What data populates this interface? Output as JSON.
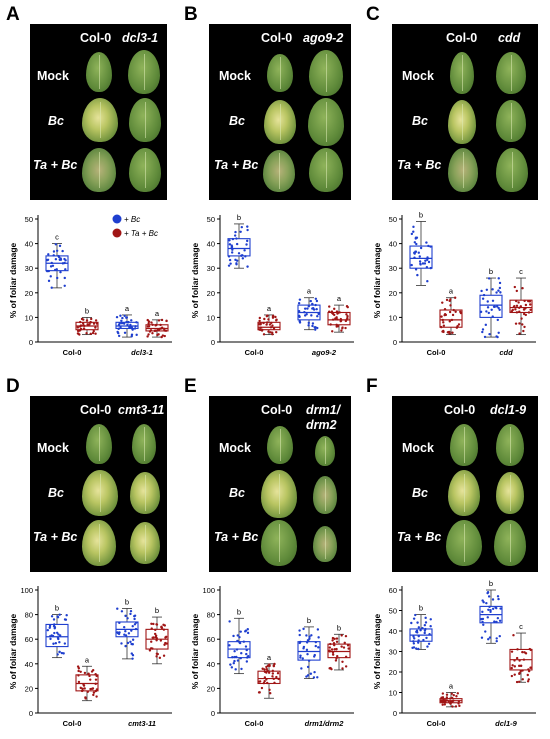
{
  "panels": [
    {
      "letter": "A",
      "col0": "Col-0",
      "mutant": "dcl3-1"
    },
    {
      "letter": "B",
      "col0": "Col-0",
      "mutant": "ago9-2"
    },
    {
      "letter": "C",
      "col0": "Col-0",
      "mutant": "cdd"
    },
    {
      "letter": "D",
      "col0": "Col-0",
      "mutant": "cmt3-11"
    },
    {
      "letter": "E",
      "col0": "Col-0",
      "mutant_line1": "drm1/",
      "mutant_line2": "drm2"
    },
    {
      "letter": "F",
      "col0": "Col-0",
      "mutant": "dcl1-9"
    }
  ],
  "row_labels": {
    "mock": "Mock",
    "bc": "Bc",
    "tabc": "Ta + Bc"
  },
  "legend": {
    "bc": "+ Bc",
    "tabc": "+ Ta + Bc"
  },
  "colors": {
    "bc": "#1f3fcf",
    "tabc": "#a01515",
    "photo_bg": "#000000",
    "leaf": "#5f8a3a"
  },
  "chart_data": [
    {
      "panel": "A",
      "type": "box",
      "ylabel": "% of foliar damage",
      "ylim": [
        0,
        50
      ],
      "yticks": [
        0,
        10,
        20,
        30,
        40,
        50
      ],
      "categories": [
        "Col-0",
        "dcl3-1"
      ],
      "boxes": [
        {
          "cat": 0,
          "group": "bc",
          "min": 22,
          "q1": 29,
          "median": 32,
          "q3": 35,
          "max": 40,
          "letter": "c"
        },
        {
          "cat": 0,
          "group": "tabc",
          "min": 3,
          "q1": 5,
          "median": 6.5,
          "q3": 8,
          "max": 10,
          "letter": "b"
        },
        {
          "cat": 1,
          "group": "bc",
          "min": 2,
          "q1": 5.5,
          "median": 6.5,
          "q3": 8,
          "max": 11,
          "letter": "a"
        },
        {
          "cat": 1,
          "group": "tabc",
          "min": 2,
          "q1": 4.5,
          "median": 5.5,
          "q3": 7,
          "max": 9,
          "letter": "a"
        }
      ]
    },
    {
      "panel": "B",
      "type": "box",
      "ylabel": "% of foliar damage",
      "ylim": [
        0,
        50
      ],
      "yticks": [
        0,
        10,
        20,
        30,
        40,
        50
      ],
      "categories": [
        "Col-0",
        "ago9-2"
      ],
      "boxes": [
        {
          "cat": 0,
          "group": "bc",
          "min": 30,
          "q1": 35,
          "median": 38,
          "q3": 42,
          "max": 48,
          "letter": "b"
        },
        {
          "cat": 0,
          "group": "tabc",
          "min": 3,
          "q1": 5,
          "median": 6,
          "q3": 8,
          "max": 11,
          "letter": "a"
        },
        {
          "cat": 1,
          "group": "bc",
          "min": 5,
          "q1": 9,
          "median": 12,
          "q3": 15,
          "max": 18,
          "letter": "a"
        },
        {
          "cat": 1,
          "group": "tabc",
          "min": 4,
          "q1": 7,
          "median": 9,
          "q3": 12,
          "max": 15,
          "letter": "a"
        }
      ]
    },
    {
      "panel": "C",
      "type": "box",
      "ylabel": "% of foliar damage",
      "ylim": [
        0,
        50
      ],
      "yticks": [
        0,
        10,
        20,
        30,
        40,
        50
      ],
      "categories": [
        "Col-0",
        "cdd"
      ],
      "boxes": [
        {
          "cat": 0,
          "group": "bc",
          "min": 23,
          "q1": 30,
          "median": 34,
          "q3": 39,
          "max": 49,
          "letter": "b"
        },
        {
          "cat": 0,
          "group": "tabc",
          "min": 3,
          "q1": 6,
          "median": 9,
          "q3": 13,
          "max": 18,
          "letter": "a"
        },
        {
          "cat": 1,
          "group": "bc",
          "min": 2,
          "q1": 10,
          "median": 15,
          "q3": 19,
          "max": 26,
          "letter": "b"
        },
        {
          "cat": 1,
          "group": "tabc",
          "min": 3,
          "q1": 12,
          "median": 14,
          "q3": 17,
          "max": 26,
          "letter": "c"
        }
      ]
    },
    {
      "panel": "D",
      "type": "box",
      "ylabel": "% of foliar damage",
      "ylim": [
        0,
        100
      ],
      "yticks": [
        0,
        20,
        40,
        60,
        80,
        100
      ],
      "categories": [
        "Col-0",
        "cmt3-11"
      ],
      "boxes": [
        {
          "cat": 0,
          "group": "bc",
          "min": 45,
          "q1": 54,
          "median": 62,
          "q3": 72,
          "max": 80,
          "letter": "b"
        },
        {
          "cat": 0,
          "group": "tabc",
          "min": 10,
          "q1": 18,
          "median": 24,
          "q3": 31,
          "max": 38,
          "letter": "a"
        },
        {
          "cat": 1,
          "group": "bc",
          "min": 44,
          "q1": 62,
          "median": 68,
          "q3": 74,
          "max": 85,
          "letter": "b"
        },
        {
          "cat": 1,
          "group": "tabc",
          "min": 40,
          "q1": 52,
          "median": 60,
          "q3": 68,
          "max": 78,
          "letter": "b"
        }
      ]
    },
    {
      "panel": "E",
      "type": "box",
      "ylabel": "% of foliar damage",
      "ylim": [
        0,
        100
      ],
      "yticks": [
        0,
        20,
        40,
        60,
        80,
        100
      ],
      "categories": [
        "Col-0",
        "drm1/drm2"
      ],
      "boxes": [
        {
          "cat": 0,
          "group": "bc",
          "min": 32,
          "q1": 45,
          "median": 52,
          "q3": 58,
          "max": 77,
          "letter": "b"
        },
        {
          "cat": 0,
          "group": "tabc",
          "min": 12,
          "q1": 24,
          "median": 28,
          "q3": 34,
          "max": 40,
          "letter": "a"
        },
        {
          "cat": 1,
          "group": "bc",
          "min": 28,
          "q1": 43,
          "median": 50,
          "q3": 58,
          "max": 70,
          "letter": "b"
        },
        {
          "cat": 1,
          "group": "tabc",
          "min": 35,
          "q1": 45,
          "median": 50,
          "q3": 56,
          "max": 64,
          "letter": "b"
        }
      ]
    },
    {
      "panel": "F",
      "type": "box",
      "ylabel": "% of foliar damage",
      "ylim": [
        0,
        60
      ],
      "yticks": [
        0,
        10,
        20,
        30,
        40,
        50,
        60
      ],
      "categories": [
        "Col-0",
        "dcl1-9"
      ],
      "boxes": [
        {
          "cat": 0,
          "group": "bc",
          "min": 31,
          "q1": 35,
          "median": 38,
          "q3": 41,
          "max": 48,
          "letter": "b"
        },
        {
          "cat": 0,
          "group": "tabc",
          "min": 3,
          "q1": 5,
          "median": 6,
          "q3": 7,
          "max": 10,
          "letter": "a"
        },
        {
          "cat": 1,
          "group": "bc",
          "min": 34,
          "q1": 44,
          "median": 48,
          "q3": 52,
          "max": 60,
          "letter": "b"
        },
        {
          "cat": 1,
          "group": "tabc",
          "min": 15,
          "q1": 21,
          "median": 26,
          "q3": 31,
          "max": 39,
          "letter": "c"
        }
      ]
    }
  ]
}
